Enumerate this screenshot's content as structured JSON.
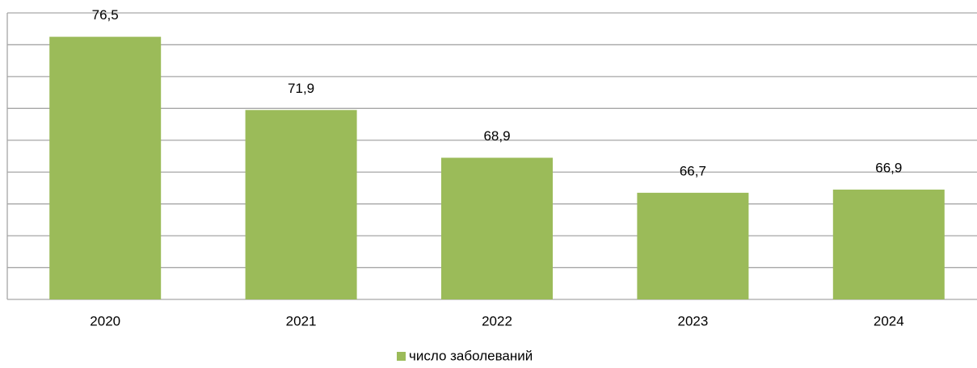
{
  "chart_data": {
    "type": "bar",
    "categories": [
      "2020",
      "2021",
      "2022",
      "2023",
      "2024"
    ],
    "series": [
      {
        "name": "число заболеваний",
        "color": "#9bbb59",
        "values": [
          76.5,
          71.9,
          68.9,
          66.7,
          66.9
        ],
        "value_labels": [
          "76,5",
          "71,9",
          "68,9",
          "66,7",
          "66,9"
        ]
      }
    ],
    "ylim": [
      60,
      78
    ],
    "yticks": [
      60,
      62,
      64,
      66,
      68,
      70,
      72,
      74,
      76,
      78
    ],
    "grid": true,
    "legend": "bottom"
  }
}
